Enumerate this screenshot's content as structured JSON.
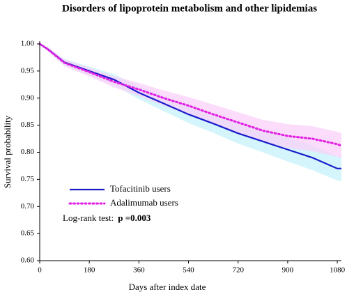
{
  "chart_data": {
    "type": "line",
    "title": "Disorders of lipoprotein metabolism and other lipidemias",
    "x_label": "Days after index date",
    "y_label": "Survival probability",
    "x": [
      0,
      30,
      90,
      180,
      270,
      360,
      450,
      540,
      630,
      720,
      810,
      900,
      990,
      1080,
      1095
    ],
    "series": [
      {
        "name": "Tofacitinib users",
        "color": "#1a1acc",
        "band_color": "#c4f2fa",
        "style": "solid",
        "values": [
          1.0,
          0.99,
          0.966,
          0.95,
          0.934,
          0.91,
          0.89,
          0.87,
          0.853,
          0.835,
          0.82,
          0.805,
          0.79,
          0.77,
          0.77
        ],
        "lower": [
          1.0,
          0.986,
          0.96,
          0.942,
          0.924,
          0.898,
          0.876,
          0.854,
          0.836,
          0.816,
          0.8,
          0.783,
          0.767,
          0.748,
          0.747
        ],
        "upper": [
          1.0,
          0.994,
          0.972,
          0.958,
          0.944,
          0.922,
          0.904,
          0.886,
          0.87,
          0.854,
          0.84,
          0.827,
          0.813,
          0.792,
          0.793
        ]
      },
      {
        "name": "Adalimumab users",
        "color": "#e31ee3",
        "band_color": "#f9d0f9",
        "style": "dotted",
        "values": [
          1.0,
          0.99,
          0.965,
          0.948,
          0.93,
          0.916,
          0.9,
          0.886,
          0.87,
          0.855,
          0.84,
          0.83,
          0.825,
          0.815,
          0.812
        ],
        "lower": [
          1.0,
          0.986,
          0.959,
          0.94,
          0.92,
          0.904,
          0.886,
          0.87,
          0.852,
          0.836,
          0.82,
          0.808,
          0.802,
          0.792,
          0.789
        ],
        "upper": [
          1.0,
          0.994,
          0.971,
          0.956,
          0.94,
          0.928,
          0.914,
          0.902,
          0.888,
          0.874,
          0.86,
          0.852,
          0.848,
          0.838,
          0.835
        ]
      }
    ],
    "annotation": "Log-rank test:",
    "annotation_value": "p =0.003",
    "xlim": [
      0,
      1095
    ],
    "xticks": [
      0,
      180,
      360,
      540,
      720,
      900,
      1080
    ],
    "ylim": [
      0.6,
      1.0
    ],
    "yticks": [
      {
        "value": 0.6,
        "label": "0.60"
      },
      {
        "value": 0.65,
        "label": "0.65"
      },
      {
        "value": 0.7,
        "label": "0.70"
      },
      {
        "value": 0.75,
        "label": "0.75"
      },
      {
        "value": 0.8,
        "label": "0.80"
      },
      {
        "value": 0.85,
        "label": "0.85"
      },
      {
        "value": 0.9,
        "label": "0.90"
      },
      {
        "value": 0.95,
        "label": "0.95"
      },
      {
        "value": 1,
        "label": "1.00"
      }
    ],
    "legend": "lower-left"
  }
}
